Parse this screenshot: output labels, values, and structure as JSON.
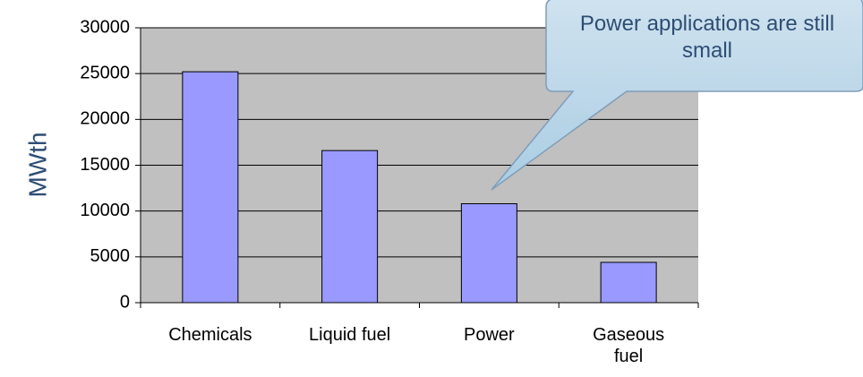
{
  "chart_data": {
    "type": "bar",
    "categories": [
      "Chemicals",
      "Liquid fuel",
      "Power",
      "Gaseous fuel"
    ],
    "values": [
      25200,
      16600,
      10800,
      4400
    ],
    "color": "#9999ff",
    "ylabel": "MWth",
    "ylim": [
      0,
      30000
    ],
    "yticks": [
      0,
      5000,
      10000,
      15000,
      20000,
      25000,
      30000
    ],
    "grid": true,
    "annotation": "Power applications are still small"
  }
}
